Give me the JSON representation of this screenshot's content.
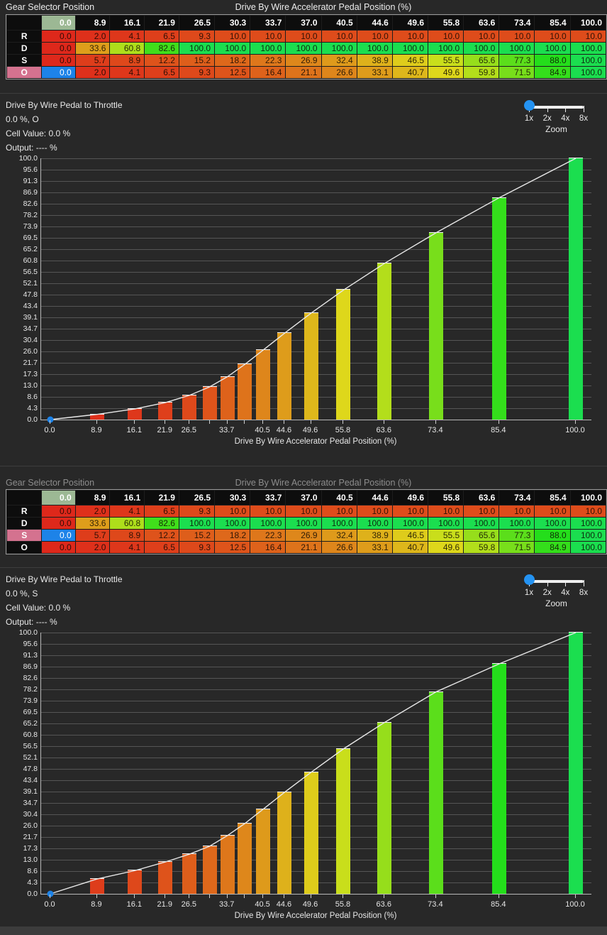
{
  "panels": [
    {
      "table": {
        "title_left": "Gear Selector Position",
        "title_right": "Drive By Wire Accelerator Pedal Position (%)",
        "dimmed": false,
        "columns": [
          "0.0",
          "8.9",
          "16.1",
          "21.9",
          "26.5",
          "30.3",
          "33.7",
          "37.0",
          "40.5",
          "44.6",
          "49.6",
          "55.8",
          "63.6",
          "73.4",
          "85.4",
          "100.0"
        ],
        "selected_column_index": 0,
        "selected_row_label": "O",
        "rows": [
          {
            "label": "R",
            "values": [
              "0.0",
              "2.0",
              "4.1",
              "6.5",
              "9.3",
              "10.0",
              "10.0",
              "10.0",
              "10.0",
              "10.0",
              "10.0",
              "10.0",
              "10.0",
              "10.0",
              "10.0",
              "10.0"
            ]
          },
          {
            "label": "D",
            "values": [
              "0.0",
              "33.6",
              "60.8",
              "82.6",
              "100.0",
              "100.0",
              "100.0",
              "100.0",
              "100.0",
              "100.0",
              "100.0",
              "100.0",
              "100.0",
              "100.0",
              "100.0",
              "100.0"
            ]
          },
          {
            "label": "S",
            "values": [
              "0.0",
              "5.7",
              "8.9",
              "12.2",
              "15.2",
              "18.2",
              "22.3",
              "26.9",
              "32.4",
              "38.9",
              "46.5",
              "55.5",
              "65.6",
              "77.3",
              "88.0",
              "100.0"
            ]
          },
          {
            "label": "O",
            "values": [
              "0.0",
              "2.0",
              "4.1",
              "6.5",
              "9.3",
              "12.5",
              "16.4",
              "21.1",
              "26.6",
              "33.1",
              "40.7",
              "49.6",
              "59.8",
              "71.5",
              "84.9",
              "100.0"
            ]
          }
        ]
      },
      "chart": {
        "title": "Drive By Wire Pedal to Throttle",
        "selection": "0.0 %, O",
        "cell_value": "Cell Value: 0.0 %",
        "output": "Output: ---- %",
        "zoom": {
          "ticks": [
            "1x",
            "2x",
            "4x",
            "8x"
          ],
          "label": "Zoom",
          "selected": "1x"
        },
        "x_axis_title": "Drive By Wire Accelerator Pedal Position (%)",
        "y_tick_labels": [
          "100.0",
          "95.6",
          "91.3",
          "86.9",
          "82.6",
          "78.2",
          "73.9",
          "69.5",
          "65.2",
          "60.8",
          "56.5",
          "52.1",
          "47.8",
          "43.4",
          "39.1",
          "34.7",
          "30.4",
          "26.0",
          "21.7",
          "17.3",
          "13.0",
          "8.6",
          "4.3",
          "0.0"
        ],
        "x_tick_labels": [
          "0.0",
          "8.9",
          "16.1",
          "21.9",
          "26.5",
          "33.7",
          "40.5",
          "44.6",
          "49.6",
          "55.8",
          "63.6",
          "73.4",
          "85.4",
          "100.0"
        ]
      }
    },
    {
      "table": {
        "title_left": "Gear Selector Position",
        "title_right": "Drive By Wire Accelerator Pedal Position (%)",
        "dimmed": true,
        "columns": [
          "0.0",
          "8.9",
          "16.1",
          "21.9",
          "26.5",
          "30.3",
          "33.7",
          "37.0",
          "40.5",
          "44.6",
          "49.6",
          "55.8",
          "63.6",
          "73.4",
          "85.4",
          "100.0"
        ],
        "selected_column_index": 0,
        "selected_row_label": "S",
        "rows": [
          {
            "label": "R",
            "values": [
              "0.0",
              "2.0",
              "4.1",
              "6.5",
              "9.3",
              "10.0",
              "10.0",
              "10.0",
              "10.0",
              "10.0",
              "10.0",
              "10.0",
              "10.0",
              "10.0",
              "10.0",
              "10.0"
            ]
          },
          {
            "label": "D",
            "values": [
              "0.0",
              "33.6",
              "60.8",
              "82.6",
              "100.0",
              "100.0",
              "100.0",
              "100.0",
              "100.0",
              "100.0",
              "100.0",
              "100.0",
              "100.0",
              "100.0",
              "100.0",
              "100.0"
            ]
          },
          {
            "label": "S",
            "values": [
              "0.0",
              "5.7",
              "8.9",
              "12.2",
              "15.2",
              "18.2",
              "22.3",
              "26.9",
              "32.4",
              "38.9",
              "46.5",
              "55.5",
              "65.6",
              "77.3",
              "88.0",
              "100.0"
            ]
          },
          {
            "label": "O",
            "values": [
              "0.0",
              "2.0",
              "4.1",
              "6.5",
              "9.3",
              "12.5",
              "16.4",
              "21.1",
              "26.6",
              "33.1",
              "40.7",
              "49.6",
              "59.8",
              "71.5",
              "84.9",
              "100.0"
            ]
          }
        ]
      },
      "chart": {
        "title": "Drive By Wire Pedal to Throttle",
        "selection": "0.0 %, S",
        "cell_value": "Cell Value: 0.0 %",
        "output": "Output: ---- %",
        "zoom": {
          "ticks": [
            "1x",
            "2x",
            "4x",
            "8x"
          ],
          "label": "Zoom",
          "selected": "1x"
        },
        "x_axis_title": "Drive By Wire Accelerator Pedal Position (%)",
        "y_tick_labels": [
          "100.0",
          "95.6",
          "91.3",
          "86.9",
          "82.6",
          "78.2",
          "73.9",
          "69.5",
          "65.2",
          "60.8",
          "56.5",
          "52.1",
          "47.8",
          "43.4",
          "39.1",
          "34.7",
          "30.4",
          "26.0",
          "21.7",
          "17.3",
          "13.0",
          "8.6",
          "4.3",
          "0.0"
        ],
        "x_tick_labels": [
          "0.0",
          "8.9",
          "16.1",
          "21.9",
          "26.5",
          "33.7",
          "40.5",
          "44.6",
          "49.6",
          "55.8",
          "63.6",
          "73.4",
          "85.4",
          "100.0"
        ]
      }
    }
  ],
  "chart_data": [
    {
      "type": "bar",
      "title": "Drive By Wire Pedal to Throttle",
      "series_label": "Gear selector O",
      "x": [
        0,
        8.9,
        16.1,
        21.9,
        26.5,
        30.3,
        33.7,
        37.0,
        40.5,
        44.6,
        49.6,
        55.8,
        63.6,
        73.4,
        85.4,
        100
      ],
      "values": [
        0,
        2.0,
        4.1,
        6.5,
        9.3,
        12.5,
        16.4,
        21.1,
        26.6,
        33.1,
        40.7,
        49.6,
        59.8,
        71.5,
        84.9,
        100
      ],
      "line_overlay": true,
      "selected_point": {
        "x": 0,
        "y": 0
      },
      "xlabel": "Drive By Wire Accelerator Pedal Position (%)",
      "ylabel": "",
      "xlim": [
        0,
        100
      ],
      "ylim": [
        0,
        100
      ],
      "grid": "horizontal"
    },
    {
      "type": "bar",
      "title": "Drive By Wire Pedal to Throttle",
      "series_label": "Gear selector S",
      "x": [
        0,
        8.9,
        16.1,
        21.9,
        26.5,
        30.3,
        33.7,
        37.0,
        40.5,
        44.6,
        49.6,
        55.8,
        63.6,
        73.4,
        85.4,
        100
      ],
      "values": [
        0,
        5.7,
        8.9,
        12.2,
        15.2,
        18.2,
        22.3,
        26.9,
        32.4,
        38.9,
        46.5,
        55.5,
        65.6,
        77.3,
        88.0,
        100
      ],
      "line_overlay": true,
      "selected_point": {
        "x": 0,
        "y": 0
      },
      "xlabel": "Drive By Wire Accelerator Pedal Position (%)",
      "ylabel": "",
      "xlim": [
        0,
        100
      ],
      "ylim": [
        0,
        100
      ],
      "grid": "horizontal"
    }
  ],
  "colors": {
    "background": "#282828",
    "selected_cell": "#1d83e8",
    "selected_row_label": "#d4728f",
    "selected_column_header": "#9cb894",
    "header_bg": "#0d0d0d",
    "slider_thumb": "#2493f2",
    "heat_low": "#df2a1b",
    "heat_mid": "#ded71c",
    "heat_high": "#23df55"
  }
}
